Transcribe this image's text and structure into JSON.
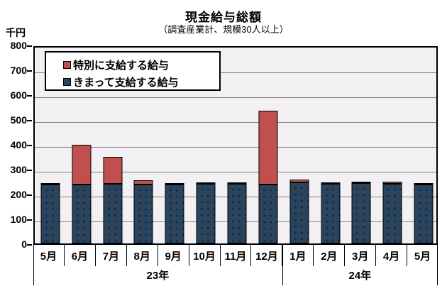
{
  "header": {
    "title": "現金給与総額",
    "subtitle": "（調査産業計、規模30人以上）",
    "unit_label": "千円"
  },
  "legend": {
    "items": [
      {
        "label": "特別に支給する給与",
        "color": "#C0504D"
      },
      {
        "label": "きまって支給する給与",
        "color": "#264562"
      }
    ]
  },
  "colors": {
    "special": "#C0504D",
    "regular": "#264562",
    "plot_background": "#F2F0F3",
    "gridline": "#828282",
    "border": "#000000"
  },
  "chart_data": {
    "type": "bar",
    "stacked": true,
    "title": "現金給与総額",
    "subtitle": "（調査産業計、規模30人以上）",
    "ylabel": "千円",
    "ylim": [
      0,
      800
    ],
    "ytick_step": 100,
    "yticks": [
      0,
      100,
      200,
      300,
      400,
      500,
      600,
      700,
      800
    ],
    "grid": true,
    "legend_position": "top-left-inside",
    "categories": [
      "5月",
      "6月",
      "7月",
      "8月",
      "9月",
      "10月",
      "11月",
      "12月",
      "1月",
      "2月",
      "3月",
      "4月",
      "5月"
    ],
    "year_groups": [
      {
        "label": "23年",
        "span": 8
      },
      {
        "label": "24年",
        "span": 5
      }
    ],
    "series": [
      {
        "name": "きまって支給する給与",
        "color": "#264562",
        "values": [
          237,
          237,
          239,
          236,
          237,
          240,
          241,
          236,
          247,
          241,
          244,
          241,
          238
        ]
      },
      {
        "name": "特別に支給する給与",
        "color": "#C0504D",
        "values": [
          3,
          160,
          111,
          18,
          3,
          2,
          5,
          297,
          9,
          2,
          3,
          7,
          3
        ]
      }
    ],
    "totals": [
      240,
      397,
      350,
      254,
      240,
      242,
      246,
      533,
      256,
      243,
      247,
      248,
      241
    ]
  }
}
